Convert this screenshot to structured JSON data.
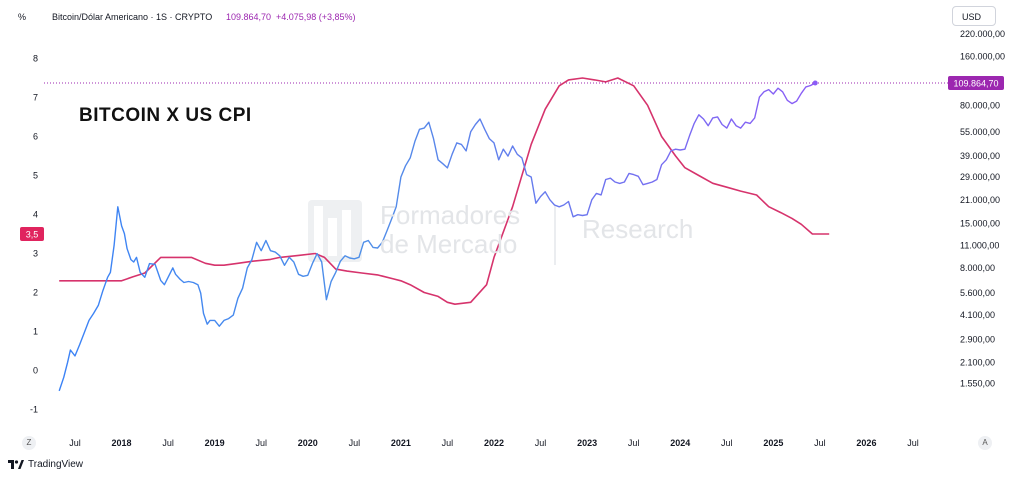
{
  "header": {
    "left_unit": "%",
    "symbol": "Bitcoin/Dólar Americano · 1S · CRYPTO",
    "last_price": "109.864,70",
    "change": "+4.075,98 (+3,85%)",
    "right_unit": "USD"
  },
  "overlay_title": "BITCOIN X US CPI",
  "watermark": {
    "line1": "Formadores",
    "line2": "de Mercado",
    "line3": "Research"
  },
  "footer": {
    "brand": "TradingView",
    "left_button": "Z",
    "right_button": "A"
  },
  "colors": {
    "btc_start": "#3b82f6",
    "btc_end": "#8b5cf6",
    "cpi": "#d6336c",
    "price_label": "#9c27b0",
    "cpi_label": "#e0245e"
  },
  "chart_data": {
    "type": "line",
    "title": "BITCOIN X US CPI",
    "x_ticks": [
      "Jul",
      "2018",
      "Jul",
      "2019",
      "Jul",
      "2020",
      "Jul",
      "2021",
      "Jul",
      "2022",
      "Jul",
      "2023",
      "Jul",
      "2024",
      "Jul",
      "2025",
      "Jul",
      "2026",
      "Jul"
    ],
    "left_axis": {
      "unit": "%",
      "ticks": [
        "8",
        "7",
        "6",
        "5",
        "4",
        "3",
        "2",
        "1",
        "0",
        "-1"
      ],
      "range": [
        -1.3,
        8.8
      ]
    },
    "right_axis": {
      "unit": "USD",
      "scale": "log",
      "ticks": [
        "220.000,00",
        "160.000,00",
        "110.000,00",
        "80.000,00",
        "55.000,00",
        "39.000,00",
        "29.000,00",
        "21.000,00",
        "15.000,00",
        "11.000,00",
        "8.000,00",
        "5.600,00",
        "4.100,00",
        "2.900,00",
        "2.100,00",
        "1.550,00"
      ]
    },
    "current_cpi_label": "3,5",
    "current_price_label": "109.864,70",
    "series": [
      {
        "axis": "left",
        "points": [
          [
            2017.33,
            2.3
          ],
          [
            2017.5,
            2.3
          ],
          [
            2017.75,
            2.3
          ],
          [
            2017.92,
            2.3
          ],
          [
            2018.0,
            2.3
          ],
          [
            2018.12,
            2.4
          ],
          [
            2018.25,
            2.5
          ],
          [
            2018.42,
            2.9
          ],
          [
            2018.58,
            2.9
          ],
          [
            2018.75,
            2.9
          ],
          [
            2018.9,
            2.75
          ],
          [
            2019.0,
            2.7
          ],
          [
            2019.1,
            2.7
          ],
          [
            2019.25,
            2.75
          ],
          [
            2019.4,
            2.8
          ],
          [
            2019.6,
            2.85
          ],
          [
            2019.7,
            2.9
          ],
          [
            2019.9,
            2.95
          ],
          [
            2020.08,
            3.0
          ],
          [
            2020.18,
            2.9
          ],
          [
            2020.3,
            2.6
          ],
          [
            2020.42,
            2.55
          ],
          [
            2020.58,
            2.5
          ],
          [
            2020.75,
            2.45
          ],
          [
            2020.92,
            2.35
          ],
          [
            2021.0,
            2.3
          ],
          [
            2021.1,
            2.2
          ],
          [
            2021.25,
            2.0
          ],
          [
            2021.4,
            1.9
          ],
          [
            2021.5,
            1.75
          ],
          [
            2021.58,
            1.7
          ],
          [
            2021.75,
            1.75
          ],
          [
            2021.92,
            2.2
          ],
          [
            2022.0,
            2.9
          ],
          [
            2022.2,
            4.2
          ],
          [
            2022.4,
            5.8
          ],
          [
            2022.55,
            6.7
          ],
          [
            2022.7,
            7.3
          ],
          [
            2022.8,
            7.45
          ],
          [
            2022.95,
            7.5
          ],
          [
            2023.08,
            7.45
          ],
          [
            2023.2,
            7.4
          ],
          [
            2023.33,
            7.5
          ],
          [
            2023.5,
            7.3
          ],
          [
            2023.65,
            6.8
          ],
          [
            2023.8,
            6.0
          ],
          [
            2023.95,
            5.5
          ],
          [
            2024.05,
            5.2
          ],
          [
            2024.2,
            5.0
          ],
          [
            2024.35,
            4.8
          ],
          [
            2024.5,
            4.7
          ],
          [
            2024.65,
            4.6
          ],
          [
            2024.82,
            4.5
          ],
          [
            2024.95,
            4.2
          ],
          [
            2025.08,
            4.05
          ],
          [
            2025.2,
            3.9
          ],
          [
            2025.3,
            3.75
          ],
          [
            2025.42,
            3.5
          ],
          [
            2025.6,
            3.5
          ]
        ]
      },
      {
        "axis": "right",
        "points": [
          [
            2017.33,
            1400
          ],
          [
            2017.38,
            1700
          ],
          [
            2017.42,
            2100
          ],
          [
            2017.45,
            2500
          ],
          [
            2017.5,
            2300
          ],
          [
            2017.55,
            2700
          ],
          [
            2017.6,
            3200
          ],
          [
            2017.65,
            3800
          ],
          [
            2017.7,
            4200
          ],
          [
            2017.75,
            4700
          ],
          [
            2017.8,
            5800
          ],
          [
            2017.85,
            7000
          ],
          [
            2017.88,
            7500
          ],
          [
            2017.92,
            11000
          ],
          [
            2017.96,
            19000
          ],
          [
            2018.0,
            14500
          ],
          [
            2018.03,
            13000
          ],
          [
            2018.06,
            10500
          ],
          [
            2018.1,
            9000
          ],
          [
            2018.13,
            8700
          ],
          [
            2018.16,
            9300
          ],
          [
            2018.2,
            7500
          ],
          [
            2018.25,
            7000
          ],
          [
            2018.3,
            8500
          ],
          [
            2018.36,
            8400
          ],
          [
            2018.42,
            6700
          ],
          [
            2018.46,
            6300
          ],
          [
            2018.5,
            7000
          ],
          [
            2018.55,
            8000
          ],
          [
            2018.58,
            7300
          ],
          [
            2018.63,
            6800
          ],
          [
            2018.67,
            6500
          ],
          [
            2018.72,
            6600
          ],
          [
            2018.77,
            6500
          ],
          [
            2018.82,
            6300
          ],
          [
            2018.85,
            5600
          ],
          [
            2018.88,
            4200
          ],
          [
            2018.92,
            3600
          ],
          [
            2018.95,
            3800
          ],
          [
            2019.0,
            3800
          ],
          [
            2019.05,
            3500
          ],
          [
            2019.1,
            3800
          ],
          [
            2019.15,
            3900
          ],
          [
            2019.2,
            4100
          ],
          [
            2019.25,
            5200
          ],
          [
            2019.3,
            6000
          ],
          [
            2019.35,
            8000
          ],
          [
            2019.4,
            9000
          ],
          [
            2019.45,
            11500
          ],
          [
            2019.5,
            10200
          ],
          [
            2019.55,
            11800
          ],
          [
            2019.6,
            10200
          ],
          [
            2019.65,
            10000
          ],
          [
            2019.7,
            9500
          ],
          [
            2019.75,
            8300
          ],
          [
            2019.8,
            9300
          ],
          [
            2019.85,
            8700
          ],
          [
            2019.9,
            7300
          ],
          [
            2019.95,
            7100
          ],
          [
            2020.0,
            7200
          ],
          [
            2020.05,
            8500
          ],
          [
            2020.1,
            9800
          ],
          [
            2020.15,
            8700
          ],
          [
            2020.2,
            5100
          ],
          [
            2020.25,
            6600
          ],
          [
            2020.3,
            7500
          ],
          [
            2020.35,
            8800
          ],
          [
            2020.4,
            9500
          ],
          [
            2020.45,
            9200
          ],
          [
            2020.5,
            9100
          ],
          [
            2020.55,
            9300
          ],
          [
            2020.6,
            11500
          ],
          [
            2020.65,
            11800
          ],
          [
            2020.7,
            10700
          ],
          [
            2020.75,
            10600
          ],
          [
            2020.8,
            11500
          ],
          [
            2020.85,
            13500
          ],
          [
            2020.9,
            16000
          ],
          [
            2020.95,
            19000
          ],
          [
            2021.0,
            29000
          ],
          [
            2021.05,
            34000
          ],
          [
            2021.1,
            38000
          ],
          [
            2021.15,
            48000
          ],
          [
            2021.2,
            57000
          ],
          [
            2021.25,
            58000
          ],
          [
            2021.3,
            63000
          ],
          [
            2021.35,
            50000
          ],
          [
            2021.4,
            37000
          ],
          [
            2021.45,
            35000
          ],
          [
            2021.5,
            33000
          ],
          [
            2021.55,
            40000
          ],
          [
            2021.6,
            47000
          ],
          [
            2021.65,
            46000
          ],
          [
            2021.7,
            42000
          ],
          [
            2021.75,
            55000
          ],
          [
            2021.8,
            61000
          ],
          [
            2021.85,
            66000
          ],
          [
            2021.9,
            57000
          ],
          [
            2021.95,
            50000
          ],
          [
            2022.0,
            47000
          ],
          [
            2022.05,
            37000
          ],
          [
            2022.1,
            43000
          ],
          [
            2022.15,
            39000
          ],
          [
            2022.2,
            45000
          ],
          [
            2022.25,
            40000
          ],
          [
            2022.3,
            38000
          ],
          [
            2022.35,
            30000
          ],
          [
            2022.4,
            29000
          ],
          [
            2022.45,
            20000
          ],
          [
            2022.5,
            22000
          ],
          [
            2022.55,
            23500
          ],
          [
            2022.6,
            21000
          ],
          [
            2022.65,
            19500
          ],
          [
            2022.7,
            19000
          ],
          [
            2022.75,
            19500
          ],
          [
            2022.8,
            20500
          ],
          [
            2022.85,
            16500
          ],
          [
            2022.9,
            17000
          ],
          [
            2022.95,
            16800
          ],
          [
            2023.0,
            17000
          ],
          [
            2023.05,
            21000
          ],
          [
            2023.1,
            23000
          ],
          [
            2023.15,
            22500
          ],
          [
            2023.2,
            28000
          ],
          [
            2023.25,
            28500
          ],
          [
            2023.3,
            27000
          ],
          [
            2023.35,
            26500
          ],
          [
            2023.4,
            27000
          ],
          [
            2023.45,
            30500
          ],
          [
            2023.5,
            30000
          ],
          [
            2023.55,
            29300
          ],
          [
            2023.6,
            26000
          ],
          [
            2023.65,
            26500
          ],
          [
            2023.7,
            27000
          ],
          [
            2023.75,
            28000
          ],
          [
            2023.8,
            34500
          ],
          [
            2023.85,
            37000
          ],
          [
            2023.9,
            42000
          ],
          [
            2023.95,
            43000
          ],
          [
            2024.0,
            42500
          ],
          [
            2024.05,
            43000
          ],
          [
            2024.1,
            52000
          ],
          [
            2024.15,
            62000
          ],
          [
            2024.2,
            70000
          ],
          [
            2024.25,
            66000
          ],
          [
            2024.3,
            60000
          ],
          [
            2024.35,
            67000
          ],
          [
            2024.4,
            68000
          ],
          [
            2024.45,
            61000
          ],
          [
            2024.5,
            58000
          ],
          [
            2024.55,
            66000
          ],
          [
            2024.6,
            60000
          ],
          [
            2024.65,
            58000
          ],
          [
            2024.7,
            63000
          ],
          [
            2024.75,
            62000
          ],
          [
            2024.8,
            67000
          ],
          [
            2024.85,
            90000
          ],
          [
            2024.9,
            97000
          ],
          [
            2024.95,
            100000
          ],
          [
            2025.0,
            94000
          ],
          [
            2025.05,
            102000
          ],
          [
            2025.1,
            97000
          ],
          [
            2025.15,
            86000
          ],
          [
            2025.2,
            82000
          ],
          [
            2025.25,
            85000
          ],
          [
            2025.3,
            95000
          ],
          [
            2025.35,
            104000
          ],
          [
            2025.4,
            106000
          ],
          [
            2025.45,
            109864.7
          ]
        ]
      }
    ]
  }
}
